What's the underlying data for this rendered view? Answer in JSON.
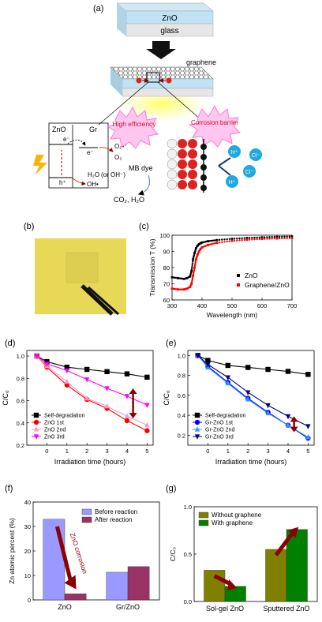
{
  "panel_labels": {
    "a": "(a)",
    "b": "(b)",
    "c": "(c)",
    "d": "(d)",
    "e": "(e)",
    "f": "(f)",
    "g": "(g)"
  },
  "schematic": {
    "zno_layer": "ZnO",
    "glass_layer": "glass",
    "graphene_label": "graphene",
    "high_efficiency": "High efficiency",
    "corrosion_barrier": "Corrosion barrier",
    "band_zno": "ZnO",
    "band_gr": "Gr",
    "electron": "e⁻",
    "electron2": "e⁻",
    "hole": "h⁺",
    "o2_radical": "O₂•⁻",
    "o2": "O₂",
    "h2o": "H₂O",
    "or_oh": "(or OH⁻)",
    "oh_radical": "OH•",
    "mb_dye": "MB dye",
    "products": "CO₂, H₂O",
    "h_plus_1": "H⁺",
    "h_plus_2": "H⁺",
    "cl_1": "Cl⁻",
    "cl_2": "Cl⁻",
    "charge_e": "e⁻",
    "charge_h": "h⁺"
  },
  "colors": {
    "zno_blue": "#bfe3f5",
    "glass_grey": "#e6e6e6",
    "spark_pink": "#f77fd0",
    "spark_pink_fill": "#ffc6ef",
    "ion_blue": "#1fa9e0",
    "dark_red": "#8b0000",
    "bar_lavender": "#9999ff",
    "bar_maroon": "#993366",
    "bar_olive": "#808000",
    "bar_green": "#008000",
    "film_yellow": "#e8d858"
  },
  "chart_data": [
    {
      "panel": "c",
      "type": "scatter",
      "xlabel": "Wavelength (nm)",
      "ylabel": "Transmission T (%)",
      "xlim": [
        300,
        700
      ],
      "ylim": [
        60,
        100
      ],
      "xticks": [
        300,
        400,
        500,
        600,
        700
      ],
      "yticks": [
        60,
        70,
        80,
        90,
        100
      ],
      "legend_position": "bottom-right",
      "series": [
        {
          "name": "ZnO",
          "color": "#000000",
          "x": [
            300,
            320,
            340,
            350,
            360,
            365,
            370,
            375,
            380,
            385,
            390,
            395,
            400,
            420,
            450,
            500,
            550,
            600,
            650,
            700
          ],
          "y": [
            74,
            73.5,
            73,
            73.5,
            74.5,
            78,
            85,
            89,
            92,
            93.5,
            94.5,
            95,
            95.5,
            96.3,
            97,
            97.8,
            98.3,
            98.7,
            99,
            99.2
          ]
        },
        {
          "name": "Graphene/ZnO",
          "color": "#ff0000",
          "x": [
            300,
            320,
            340,
            350,
            360,
            365,
            370,
            375,
            380,
            385,
            390,
            395,
            400,
            420,
            450,
            500,
            550,
            600,
            650,
            700
          ],
          "y": [
            67,
            66.5,
            66.5,
            67,
            68,
            70,
            75,
            80,
            85,
            88,
            90,
            91.5,
            92.5,
            94,
            95.3,
            96.5,
            97.2,
            97.7,
            98,
            98.3
          ]
        }
      ]
    },
    {
      "panel": "d",
      "type": "line",
      "xlabel": "Irradiation time (hours)",
      "ylabel": "C/C₀",
      "xlim": [
        -1,
        5.3
      ],
      "ylim": [
        0.2,
        1.05
      ],
      "xticks": [
        0,
        1,
        2,
        3,
        4,
        5
      ],
      "yticks": [
        0.2,
        0.4,
        0.6,
        0.8,
        1.0
      ],
      "x": [
        -0.5,
        0,
        1,
        2,
        3,
        4,
        5
      ],
      "legend_position": "bottom-left",
      "series": [
        {
          "name": "Self-degradation",
          "color": "#000000",
          "marker": "square",
          "values": [
            1.0,
            0.95,
            0.9,
            0.88,
            0.86,
            0.84,
            0.81
          ]
        },
        {
          "name": "ZnO 1st",
          "color": "#ff0000",
          "marker": "circle",
          "values": [
            1.0,
            0.9,
            0.74,
            0.61,
            0.53,
            0.42,
            0.33
          ]
        },
        {
          "name": "ZnO 2nd",
          "color": "#ff99cc",
          "marker": "triangle-up",
          "values": [
            1.0,
            0.91,
            0.77,
            0.62,
            0.55,
            0.46,
            0.38
          ]
        },
        {
          "name": "ZnO 3rd",
          "color": "#ff00ff",
          "marker": "triangle-down",
          "values": [
            1.0,
            0.93,
            0.87,
            0.79,
            0.71,
            0.64,
            0.56
          ]
        }
      ]
    },
    {
      "panel": "e",
      "type": "line",
      "xlabel": "Irradiation time (hours)",
      "ylabel": "C/C₀",
      "xlim": [
        -1,
        5.3
      ],
      "ylim": [
        0.1,
        1.05
      ],
      "xticks": [
        0,
        1,
        2,
        3,
        4,
        5
      ],
      "yticks": [
        0.2,
        0.4,
        0.6,
        0.8,
        1.0
      ],
      "x": [
        -0.5,
        0,
        1,
        2,
        3,
        4,
        5
      ],
      "legend_position": "bottom-left",
      "series": [
        {
          "name": "Self-degradation",
          "color": "#000000",
          "marker": "square",
          "values": [
            1.0,
            0.95,
            0.9,
            0.88,
            0.86,
            0.84,
            0.81
          ]
        },
        {
          "name": "Gr-ZnO 1st",
          "color": "#0000ff",
          "marker": "circle",
          "values": [
            1.0,
            0.89,
            0.73,
            0.57,
            0.43,
            0.3,
            0.17
          ]
        },
        {
          "name": "Gr-ZnO 2nd",
          "color": "#3399ff",
          "marker": "triangle-up",
          "values": [
            1.0,
            0.88,
            0.72,
            0.56,
            0.42,
            0.3,
            0.18
          ]
        },
        {
          "name": "Gr-ZnO 3rd",
          "color": "#000080",
          "marker": "triangle-down",
          "values": [
            1.0,
            0.91,
            0.78,
            0.63,
            0.5,
            0.39,
            0.29
          ]
        }
      ]
    },
    {
      "panel": "f",
      "type": "bar",
      "ylabel": "Zn atomic percent (%)",
      "ylim": [
        0,
        40
      ],
      "yticks": [
        0,
        10,
        20,
        30,
        40
      ],
      "categories": [
        "ZnO",
        "Gr/ZnO"
      ],
      "legend_position": "top-right",
      "annotation": "ZnO corrosion",
      "series": [
        {
          "name": "Before reaction",
          "color": "#9999ff",
          "values": [
            33,
            11.3
          ]
        },
        {
          "name": "After reaction",
          "color": "#993366",
          "values": [
            2.5,
            13.6
          ]
        }
      ]
    },
    {
      "panel": "g",
      "type": "bar",
      "ylabel": "C/C₀",
      "ylim": [
        0,
        1.0
      ],
      "yticks": [
        0.0,
        0.5,
        1.0
      ],
      "categories": [
        "Sol-gel ZnO",
        "Sputtered ZnO"
      ],
      "legend_position": "top-left",
      "series": [
        {
          "name": "Without graphene",
          "color": "#808000",
          "values": [
            0.33,
            0.55
          ]
        },
        {
          "name": "With graphene",
          "color": "#008000",
          "values": [
            0.16,
            0.76
          ]
        }
      ]
    }
  ]
}
